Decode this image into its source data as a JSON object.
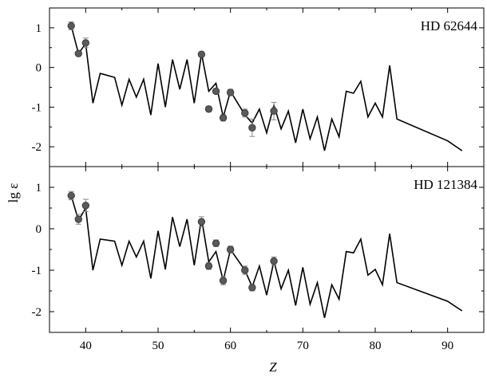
{
  "chart_data": [
    {
      "type": "line",
      "star": "HD 62644",
      "xlim": [
        35,
        95
      ],
      "ylim": [
        -2.5,
        1.5
      ],
      "y_ticks": [
        1,
        0,
        -1,
        -2
      ],
      "y_tick_labels": [
        "1",
        "0",
        "-1",
        "-2"
      ],
      "series": [
        {
          "type": "line",
          "x": [
            38,
            39,
            40,
            41,
            42,
            44,
            45,
            46,
            47,
            48,
            49,
            50,
            51,
            52,
            53,
            54,
            55,
            56,
            57,
            58,
            59,
            60,
            62,
            63,
            64,
            65,
            66,
            67,
            68,
            69,
            70,
            71,
            72,
            73,
            74,
            75,
            76,
            77,
            78,
            79,
            80,
            81,
            82,
            83,
            90,
            92
          ],
          "y": [
            1.05,
            0.35,
            0.6,
            -0.9,
            -0.15,
            -0.25,
            -0.95,
            -0.3,
            -0.75,
            -0.3,
            -1.2,
            0.1,
            -1.0,
            0.2,
            -0.55,
            0.2,
            -0.9,
            0.35,
            -0.6,
            -0.4,
            -1.25,
            -0.6,
            -1.2,
            -1.4,
            -1.05,
            -1.65,
            -0.95,
            -1.55,
            -1.1,
            -1.9,
            -1.05,
            -1.8,
            -1.25,
            -2.1,
            -1.3,
            -1.75,
            -0.6,
            -0.65,
            -0.35,
            -1.25,
            -0.9,
            -1.25,
            0.05,
            -1.3,
            -1.85,
            -2.1
          ]
        },
        {
          "type": "scatter",
          "x": [
            38,
            39,
            40,
            56,
            57,
            58,
            59,
            60,
            62,
            63,
            66
          ],
          "y": [
            1.05,
            0.35,
            0.62,
            0.33,
            -1.05,
            -0.6,
            -1.27,
            -0.63,
            -1.15,
            -1.52,
            -1.1
          ],
          "err": [
            0.1,
            0.05,
            0.12,
            0.06,
            0.07,
            0.06,
            0.08,
            0.08,
            0.1,
            0.22,
            0.22
          ]
        }
      ]
    },
    {
      "type": "line",
      "star": "HD 121384",
      "xlim": [
        35,
        95
      ],
      "ylim": [
        -2.5,
        1.5
      ],
      "y_ticks": [
        1,
        0,
        -1,
        -2
      ],
      "y_tick_labels": [
        "1",
        "0",
        "-1",
        "-2"
      ],
      "series": [
        {
          "type": "line",
          "x": [
            38,
            39,
            40,
            41,
            42,
            44,
            45,
            46,
            47,
            48,
            49,
            50,
            51,
            52,
            53,
            54,
            55,
            56,
            57,
            58,
            59,
            60,
            62,
            63,
            64,
            65,
            66,
            67,
            68,
            69,
            70,
            71,
            72,
            73,
            74,
            75,
            76,
            77,
            78,
            79,
            80,
            81,
            82,
            83,
            90,
            92
          ],
          "y": [
            0.8,
            0.2,
            0.5,
            -1.0,
            -0.25,
            -0.3,
            -0.88,
            -0.3,
            -0.68,
            -0.3,
            -1.2,
            -0.05,
            -0.98,
            0.28,
            -0.43,
            0.23,
            -0.88,
            0.25,
            -0.8,
            -0.55,
            -1.25,
            -0.5,
            -1.0,
            -1.4,
            -0.9,
            -1.6,
            -0.78,
            -1.45,
            -1.0,
            -1.85,
            -0.93,
            -1.82,
            -1.3,
            -2.15,
            -1.35,
            -1.7,
            -0.55,
            -0.58,
            -0.25,
            -1.12,
            -0.98,
            -1.35,
            -0.12,
            -1.3,
            -1.75,
            -1.98
          ]
        },
        {
          "type": "scatter",
          "x": [
            38,
            39,
            40,
            56,
            57,
            58,
            59,
            60,
            62,
            63,
            66
          ],
          "y": [
            0.8,
            0.23,
            0.56,
            0.17,
            -0.9,
            -0.35,
            -1.25,
            -0.5,
            -1.0,
            -1.42,
            -0.78
          ],
          "err": [
            0.1,
            0.12,
            0.15,
            0.12,
            0.08,
            0.08,
            0.1,
            0.08,
            0.1,
            0.08,
            0.1
          ]
        }
      ]
    }
  ],
  "shared": {
    "x_ticks": [
      40,
      50,
      60,
      70,
      80,
      90
    ],
    "x_tick_labels": [
      "40",
      "50",
      "60",
      "70",
      "80",
      "90"
    ],
    "xlabel": "Z",
    "ylabel": "lg ε"
  },
  "colors": {
    "axis": "#000000",
    "line": "#000000",
    "marker_fill": "#5a5a5a",
    "marker_stroke": "#3c3c3c",
    "errorbar": "#888888"
  }
}
